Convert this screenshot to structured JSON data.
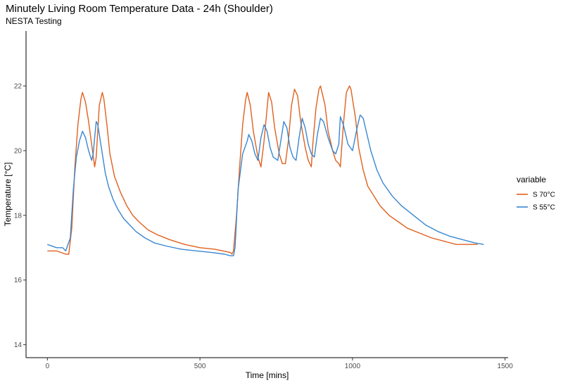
{
  "chart_data": {
    "type": "line",
    "title": "Minutely Living Room Temperature Data - 24h (Shoulder)",
    "subtitle": "NESTA Testing",
    "xlabel": "Time [mins]",
    "ylabel": "Temperature [°C]",
    "xlim": [
      -70,
      1510
    ],
    "ylim": [
      13.6,
      23.7
    ],
    "xticks": [
      0,
      500,
      1000,
      1500
    ],
    "yticks": [
      14,
      16,
      18,
      20,
      22
    ],
    "grid": false,
    "legend": {
      "title": "variable",
      "placement": "right"
    },
    "series": [
      {
        "name": "S 70°C",
        "color": "#e0601e",
        "x": [
          0,
          30,
          60,
          70,
          80,
          90,
          100,
          110,
          115,
          125,
          135,
          145,
          155,
          160,
          165,
          170,
          180,
          185,
          195,
          205,
          220,
          240,
          260,
          280,
          300,
          330,
          360,
          400,
          450,
          500,
          550,
          600,
          605,
          610,
          620,
          630,
          640,
          650,
          655,
          665,
          675,
          690,
          700,
          710,
          720,
          725,
          735,
          745,
          760,
          770,
          780,
          790,
          800,
          810,
          820,
          830,
          845,
          855,
          865,
          870,
          880,
          890,
          895,
          910,
          920,
          935,
          945,
          955,
          960,
          970,
          980,
          990,
          995,
          1010,
          1020,
          1035,
          1050,
          1070,
          1090,
          1120,
          1150,
          1180,
          1220,
          1260,
          1300,
          1340,
          1380,
          1410
        ],
        "y": [
          16.9,
          16.9,
          16.8,
          16.8,
          17.6,
          19.5,
          20.8,
          21.6,
          21.8,
          21.5,
          20.9,
          20.2,
          19.5,
          19.8,
          20.6,
          21.4,
          21.8,
          21.6,
          20.8,
          19.9,
          19.2,
          18.7,
          18.3,
          18.0,
          17.8,
          17.55,
          17.4,
          17.25,
          17.1,
          17.0,
          16.95,
          16.85,
          16.8,
          16.9,
          18.0,
          19.5,
          20.8,
          21.6,
          21.8,
          21.4,
          20.6,
          19.8,
          19.5,
          20.3,
          21.3,
          21.8,
          21.5,
          20.7,
          19.9,
          19.6,
          19.6,
          20.3,
          21.4,
          21.9,
          21.7,
          20.9,
          20.1,
          19.7,
          19.5,
          20.2,
          21.3,
          21.9,
          22.0,
          21.4,
          20.6,
          20.0,
          19.7,
          19.6,
          19.5,
          20.8,
          21.8,
          22.0,
          21.9,
          21.0,
          20.1,
          19.4,
          18.9,
          18.6,
          18.3,
          18.0,
          17.8,
          17.6,
          17.45,
          17.3,
          17.2,
          17.1,
          17.1,
          17.1
        ]
      },
      {
        "name": "S 55°C",
        "color": "#3a87d0",
        "x": [
          0,
          30,
          50,
          60,
          75,
          85,
          95,
          105,
          115,
          125,
          135,
          145,
          150,
          155,
          160,
          165,
          170,
          180,
          190,
          200,
          215,
          230,
          250,
          270,
          290,
          320,
          350,
          390,
          440,
          490,
          540,
          580,
          600,
          610,
          615,
          625,
          640,
          655,
          660,
          670,
          680,
          690,
          700,
          710,
          720,
          730,
          740,
          755,
          765,
          775,
          785,
          795,
          805,
          815,
          825,
          835,
          845,
          855,
          865,
          875,
          885,
          895,
          905,
          920,
          935,
          945,
          955,
          960,
          970,
          985,
          1000,
          1015,
          1025,
          1035,
          1045,
          1060,
          1080,
          1100,
          1130,
          1160,
          1200,
          1240,
          1280,
          1320,
          1360,
          1400,
          1430
        ],
        "y": [
          17.1,
          17.0,
          17.0,
          16.9,
          17.3,
          18.8,
          19.8,
          20.3,
          20.6,
          20.4,
          20.0,
          19.7,
          19.9,
          20.4,
          20.9,
          20.8,
          20.5,
          19.9,
          19.3,
          18.9,
          18.5,
          18.2,
          17.9,
          17.7,
          17.5,
          17.3,
          17.15,
          17.05,
          16.95,
          16.9,
          16.85,
          16.8,
          16.75,
          16.75,
          17.0,
          18.8,
          19.9,
          20.3,
          20.5,
          20.3,
          19.9,
          19.7,
          20.4,
          20.8,
          20.6,
          20.1,
          19.8,
          19.7,
          20.3,
          20.9,
          20.7,
          20.1,
          19.8,
          19.7,
          20.4,
          21.0,
          20.7,
          20.2,
          19.9,
          19.8,
          20.5,
          21.0,
          20.9,
          20.4,
          20.0,
          19.9,
          20.2,
          21.05,
          20.8,
          20.2,
          20.0,
          20.7,
          21.1,
          21.0,
          20.6,
          20.0,
          19.4,
          19.0,
          18.6,
          18.3,
          18.0,
          17.7,
          17.5,
          17.35,
          17.25,
          17.15,
          17.1
        ]
      }
    ]
  }
}
